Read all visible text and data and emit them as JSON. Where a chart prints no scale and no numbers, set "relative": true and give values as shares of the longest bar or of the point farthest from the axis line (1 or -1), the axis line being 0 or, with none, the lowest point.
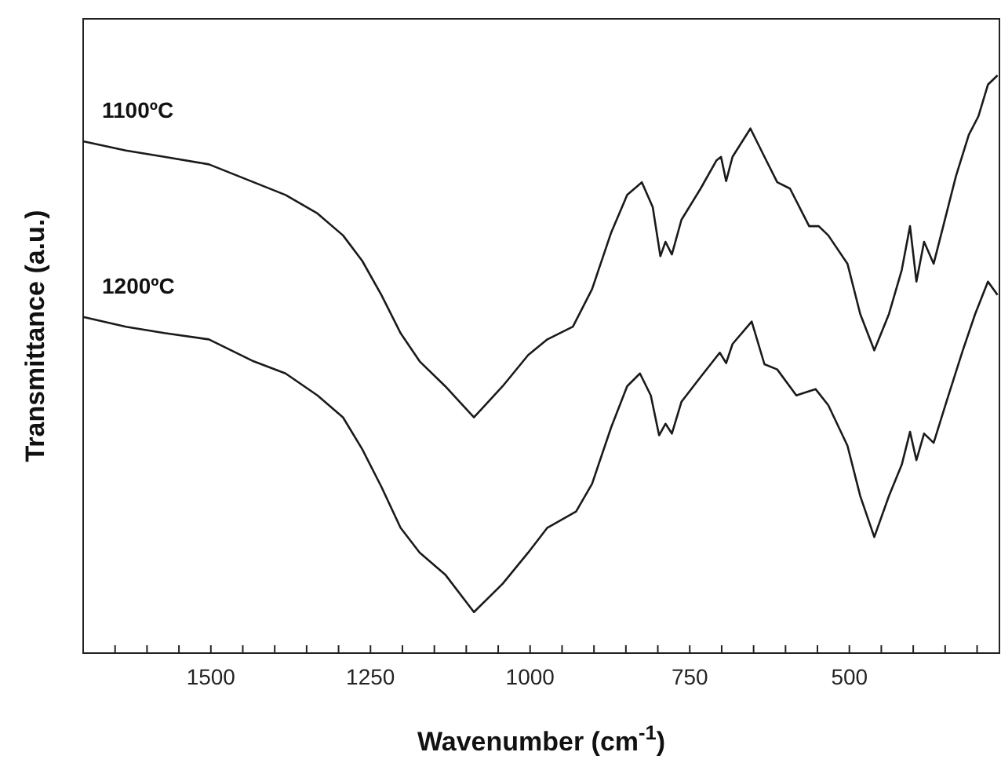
{
  "chart_data": {
    "type": "line",
    "relative": true,
    "xlabel": "Wavenumber (cm$^{-1}$)",
    "ylabel": "Transmittance (a.u.)",
    "xlim": [
      1700,
      265
    ],
    "xticks": [
      {
        "value": 1650,
        "label": null
      },
      {
        "value": 1600,
        "label": null
      },
      {
        "value": 1550,
        "label": null
      },
      1500,
      {
        "value": 1450,
        "label": null
      },
      {
        "value": 1400,
        "label": null
      },
      {
        "value": 1350,
        "label": null
      },
      {
        "value": 1300,
        "label": null
      },
      1250,
      {
        "value": 1200,
        "label": null
      },
      {
        "value": 1150,
        "label": null
      },
      {
        "value": 1100,
        "label": null
      },
      {
        "value": 1050,
        "label": null
      },
      1000,
      {
        "value": 950,
        "label": null
      },
      {
        "value": 900,
        "label": null
      },
      {
        "value": 850,
        "label": null
      },
      {
        "value": 800,
        "label": null
      },
      750,
      {
        "value": 700,
        "label": null
      },
      {
        "value": 650,
        "label": null
      },
      {
        "value": 600,
        "label": null
      },
      {
        "value": 550,
        "label": null
      },
      500,
      {
        "value": 450,
        "label": null
      },
      {
        "value": 400,
        "label": null
      },
      {
        "value": 350,
        "label": null
      },
      {
        "value": 300,
        "label": null
      }
    ],
    "tick_labels": "x",
    "grid": false,
    "marker": "none",
    "line_style": "solid",
    "series": [
      {
        "name": "1100ºC",
        "color": "#1a1a1a",
        "x": [
          1700,
          1633,
          1573,
          1503,
          1433,
          1383,
          1333,
          1293,
          1263,
          1233,
          1203,
          1173,
          1133,
          1088,
          1043,
          1003,
          973,
          933,
          903,
          873,
          848,
          825,
          808,
          796,
          788,
          778,
          763,
          733,
          708,
          701,
          693,
          683,
          655,
          633,
          613,
          593,
          563,
          548,
          533,
          503,
          483,
          461,
          438,
          418,
          405,
          395,
          383,
          368,
          353,
          333,
          313,
          298,
          283,
          268
        ],
        "values": [
          0.886,
          0.87,
          0.859,
          0.846,
          0.815,
          0.793,
          0.761,
          0.723,
          0.679,
          0.62,
          0.554,
          0.505,
          0.462,
          0.408,
          0.462,
          0.516,
          0.543,
          0.565,
          0.63,
          0.728,
          0.793,
          0.815,
          0.772,
          0.687,
          0.712,
          0.69,
          0.75,
          0.804,
          0.853,
          0.859,
          0.817,
          0.859,
          0.908,
          0.859,
          0.815,
          0.804,
          0.739,
          0.739,
          0.723,
          0.674,
          0.587,
          0.524,
          0.587,
          0.663,
          0.739,
          0.643,
          0.712,
          0.674,
          0.739,
          0.826,
          0.897,
          0.929,
          0.984,
          1.0
        ]
      },
      {
        "name": "1200ºC",
        "color": "#1a1a1a",
        "x": [
          1700,
          1633,
          1573,
          1503,
          1433,
          1383,
          1333,
          1293,
          1263,
          1233,
          1203,
          1173,
          1133,
          1088,
          1043,
          1003,
          973,
          928,
          903,
          873,
          848,
          828,
          811,
          798,
          788,
          778,
          763,
          733,
          703,
          693,
          683,
          653,
          633,
          613,
          583,
          553,
          533,
          503,
          483,
          461,
          438,
          418,
          405,
          395,
          383,
          368,
          348,
          323,
          303,
          283,
          268
        ],
        "values": [
          0.582,
          0.565,
          0.554,
          0.543,
          0.505,
          0.484,
          0.446,
          0.408,
          0.353,
          0.288,
          0.217,
          0.174,
          0.136,
          0.071,
          0.12,
          0.174,
          0.217,
          0.245,
          0.293,
          0.391,
          0.462,
          0.484,
          0.446,
          0.377,
          0.397,
          0.38,
          0.435,
          0.478,
          0.52,
          0.502,
          0.535,
          0.574,
          0.5,
          0.491,
          0.446,
          0.457,
          0.429,
          0.359,
          0.272,
          0.201,
          0.272,
          0.326,
          0.383,
          0.334,
          0.38,
          0.364,
          0.435,
          0.522,
          0.587,
          0.643,
          0.62
        ]
      }
    ]
  }
}
